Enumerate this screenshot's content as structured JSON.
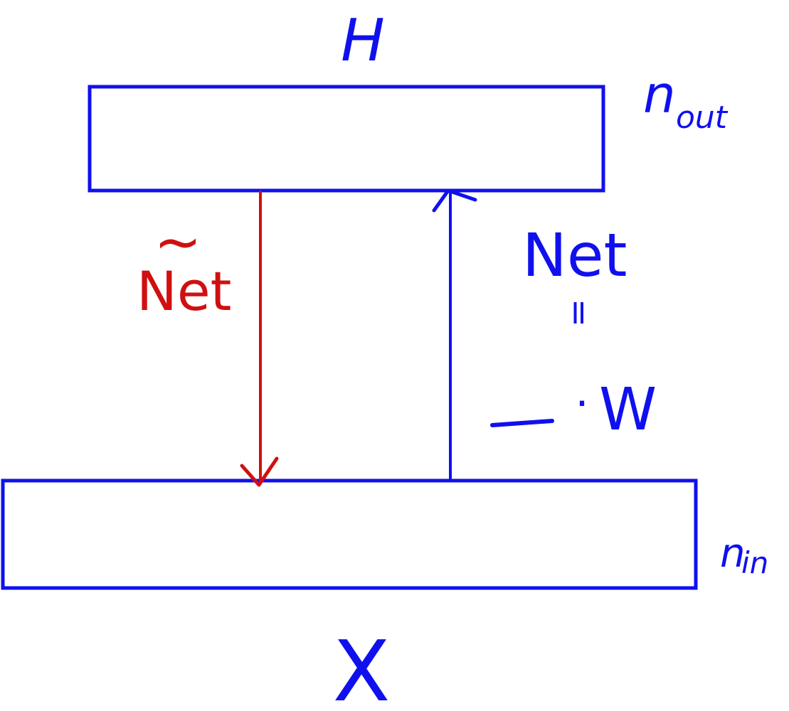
{
  "colors": {
    "primary": "#1010ee",
    "accent": "#d01010",
    "background": "#ffffff"
  },
  "top_layer": {
    "label": "H",
    "size_label_main": "n",
    "size_label_sub": "out"
  },
  "bottom_layer": {
    "label": "X",
    "size_label_main": "n",
    "size_label_sub": "in"
  },
  "backward_arrow": {
    "label": "Net",
    "decoration": "~"
  },
  "forward_arrow": {
    "label": "Net",
    "equals": "=",
    "expression_dot": "·",
    "expression_var": "W"
  }
}
